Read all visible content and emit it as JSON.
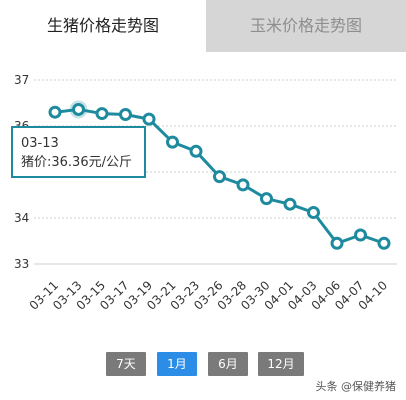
{
  "tabs": [
    {
      "label": "生猪价格走势图",
      "active": true
    },
    {
      "label": "玉米价格走势图",
      "active": false
    }
  ],
  "tooltip": {
    "date": "03-13",
    "text": "猪价:36.36元/公斤"
  },
  "ranges": [
    {
      "label": "7天",
      "active": false
    },
    {
      "label": "1月",
      "active": true
    },
    {
      "label": "6月",
      "active": false
    },
    {
      "label": "12月",
      "active": false
    }
  ],
  "watermark": "头条 @保健养猪",
  "colors": {
    "line": "#1e8a9e",
    "active_tab_bg": "#ffffff",
    "inactive_tab_bg": "#d6d6d6",
    "active_range": "#2b8de6",
    "range_btn": "#7a7a7a"
  },
  "chart_data": {
    "type": "line",
    "categories": [
      "03-11",
      "03-13",
      "03-15",
      "03-17",
      "03-19",
      "03-21",
      "03-23",
      "03-26",
      "03-28",
      "03-30",
      "04-01",
      "04-03",
      "04-06",
      "04-07",
      "04-10"
    ],
    "series": [
      {
        "values": [
          36.3,
          36.36,
          36.27,
          36.25,
          36.15,
          35.65,
          35.45,
          34.9,
          34.72,
          34.42,
          34.3,
          34.12,
          33.45,
          33.63,
          33.45
        ]
      }
    ],
    "yticks": [
      33,
      34,
      35,
      36,
      37
    ],
    "ylim": [
      33,
      37
    ],
    "highlight_index": 1,
    "grid": true
  }
}
